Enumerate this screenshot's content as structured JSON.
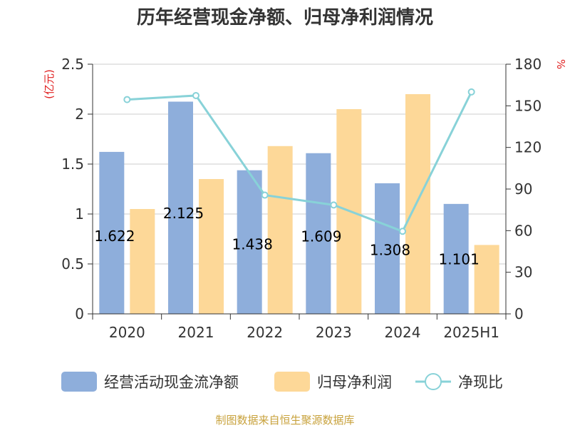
{
  "chart_data": {
    "type": "bar",
    "title": "历年经营现金净额、归母净利润情况",
    "left_axis_unit": "(亿元)",
    "right_axis_unit": "%",
    "categories": [
      "2020",
      "2021",
      "2022",
      "2023",
      "2024",
      "2025H1"
    ],
    "y_left": {
      "min": 0,
      "max": 2.5,
      "ticks": [
        "0",
        "0.5",
        "1",
        "1.5",
        "2",
        "2.5"
      ]
    },
    "y_right": {
      "min": 0,
      "max": 180,
      "ticks": [
        "0",
        "30",
        "60",
        "90",
        "120",
        "150",
        "180"
      ]
    },
    "series": [
      {
        "name": "经营活动现金流净额",
        "type": "bar",
        "axis": "left",
        "color": "#8eaedb",
        "values": [
          1.622,
          2.125,
          1.438,
          1.609,
          1.308,
          1.101
        ],
        "labels": [
          "1.622",
          "2.125",
          "1.438",
          "1.609",
          "1.308",
          "1.101"
        ]
      },
      {
        "name": "归母净利润",
        "type": "bar",
        "axis": "left",
        "color": "#fdd898",
        "values": [
          1.05,
          1.35,
          1.68,
          2.05,
          2.2,
          0.69
        ]
      },
      {
        "name": "净现比",
        "type": "line",
        "axis": "right",
        "color": "#88d2d8",
        "values": [
          154.5,
          157.4,
          85.6,
          78.5,
          59.5,
          160.0
        ]
      }
    ],
    "grid": true,
    "legend_position": "bottom"
  },
  "source": "制图数据来自恒生聚源数据库"
}
